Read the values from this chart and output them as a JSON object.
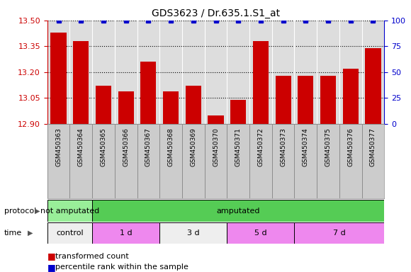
{
  "title": "GDS3623 / Dr.635.1.S1_at",
  "samples": [
    "GSM450363",
    "GSM450364",
    "GSM450365",
    "GSM450366",
    "GSM450367",
    "GSM450368",
    "GSM450369",
    "GSM450370",
    "GSM450371",
    "GSM450372",
    "GSM450373",
    "GSM450374",
    "GSM450375",
    "GSM450376",
    "GSM450377"
  ],
  "transformed_counts": [
    13.43,
    13.38,
    13.12,
    13.09,
    13.26,
    13.09,
    13.12,
    12.95,
    13.04,
    13.38,
    13.18,
    13.18,
    13.18,
    13.22,
    13.34
  ],
  "percentile_ranks": [
    100,
    100,
    100,
    100,
    100,
    100,
    100,
    100,
    100,
    100,
    100,
    100,
    100,
    100,
    100
  ],
  "ylim_left": [
    12.9,
    13.5
  ],
  "ylim_right": [
    0,
    100
  ],
  "yticks_left": [
    12.9,
    13.05,
    13.2,
    13.35,
    13.5
  ],
  "yticks_right": [
    0,
    25,
    50,
    75,
    100
  ],
  "bar_color": "#cc0000",
  "dot_color": "#0000cc",
  "protocol_labels": [
    {
      "label": "not amputated",
      "start": 0,
      "end": 2,
      "color": "#99ee99"
    },
    {
      "label": "amputated",
      "start": 2,
      "end": 15,
      "color": "#55cc55"
    }
  ],
  "time_labels": [
    {
      "label": "control",
      "start": 0,
      "end": 2,
      "color": "#eeeeee"
    },
    {
      "label": "1 d",
      "start": 2,
      "end": 5,
      "color": "#ee88ee"
    },
    {
      "label": "3 d",
      "start": 5,
      "end": 8,
      "color": "#eeeeee"
    },
    {
      "label": "5 d",
      "start": 8,
      "end": 11,
      "color": "#ee88ee"
    },
    {
      "label": "7 d",
      "start": 11,
      "end": 15,
      "color": "#ee88ee"
    }
  ],
  "legend_items": [
    {
      "label": "transformed count",
      "color": "#cc0000"
    },
    {
      "label": "percentile rank within the sample",
      "color": "#0000cc"
    }
  ],
  "axis_label_color_left": "#cc0000",
  "axis_label_color_right": "#0000cc",
  "plot_bg_color": "#dddddd",
  "xlabels_bg_color": "#cccccc",
  "fig_bg_color": "#ffffff"
}
